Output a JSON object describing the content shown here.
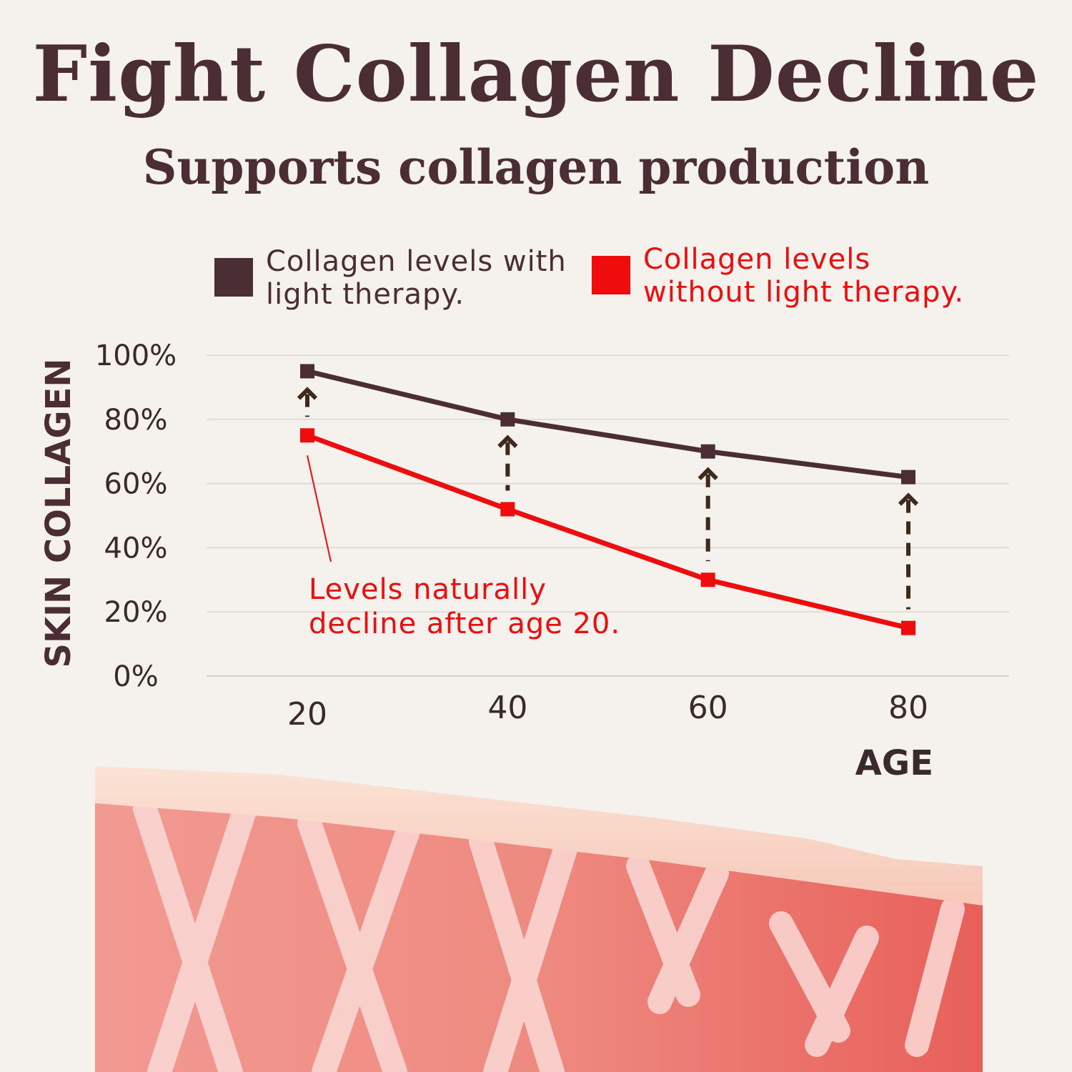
{
  "colors": {
    "background": "#f5f1ec",
    "with_therapy": "#4a2e33",
    "without_therapy": "#ef0c0c",
    "arrow": "#3d2a1c",
    "grid": "#dcd6d0"
  },
  "chart_data": {
    "type": "line",
    "title": "Fight Collagen Decline",
    "subtitle": "Supports collagen production",
    "xlabel": "AGE",
    "ylabel": "SKIN COLLAGEN",
    "x": [
      20,
      40,
      60,
      80
    ],
    "ylim": [
      0,
      100
    ],
    "yticks": [
      "100%",
      "80%",
      "60%",
      "40%",
      "20%",
      "0%"
    ],
    "ytick_values": [
      100,
      80,
      60,
      40,
      20,
      0
    ],
    "xticks": [
      "20",
      "40",
      "60",
      "80"
    ],
    "grid": true,
    "legend_position": "top",
    "series": [
      {
        "name": "Collagen levels with light therapy.",
        "values": [
          95,
          80,
          70,
          62
        ]
      },
      {
        "name": "Collagen levels without light therapy.",
        "values": [
          75,
          52,
          30,
          15
        ]
      }
    ],
    "annotations": [
      {
        "text": "Levels naturally decline after age 20.",
        "lines": [
          "Levels naturally",
          "decline after age 20."
        ],
        "x": 20,
        "y": 75
      }
    ]
  },
  "illustration": {
    "name": "skin-collagen-fibers-illustration"
  }
}
